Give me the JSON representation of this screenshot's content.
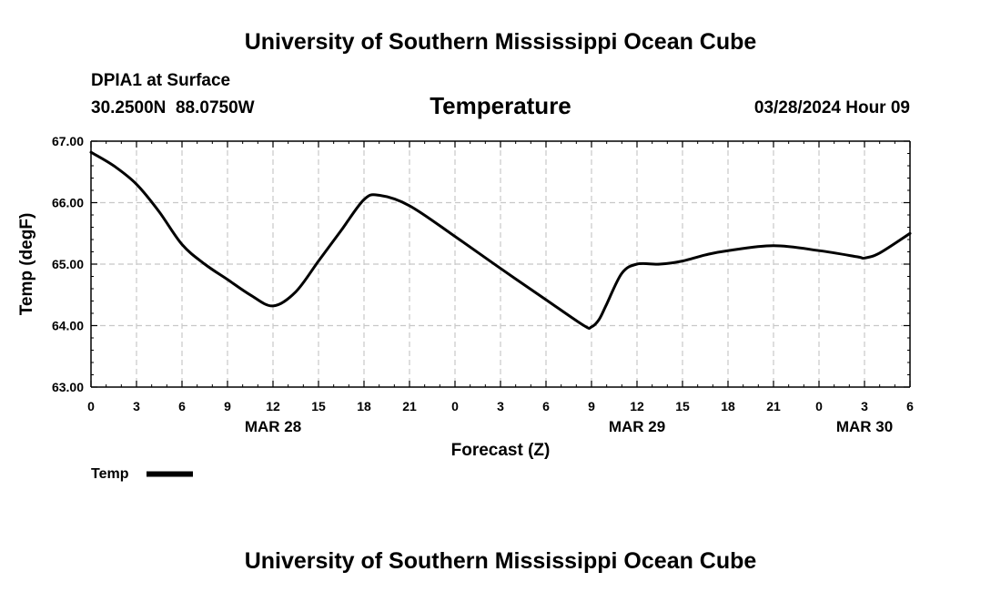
{
  "page": {
    "title_top": "University of Southern Mississippi Ocean Cube",
    "title_bottom": "University of Southern Mississippi Ocean Cube",
    "station": "DPIA1 at Surface",
    "coords": "30.2500N  88.0750W",
    "variable": "Temperature",
    "issued": "03/28/2024 Hour 09"
  },
  "chart_data": {
    "type": "line",
    "xlabel": "Forecast (Z)",
    "ylabel": "Temp (degF)",
    "ylim": [
      63,
      67
    ],
    "xlim": [
      0,
      54
    ],
    "grid": true,
    "y_ticks": [
      63,
      64,
      65,
      66,
      67
    ],
    "y_tick_labels": [
      "63.00",
      "64.00",
      "65.00",
      "66.00",
      "67.00"
    ],
    "x_ticks": [
      0,
      3,
      6,
      9,
      12,
      15,
      18,
      21,
      24,
      27,
      30,
      33,
      36,
      39,
      42,
      45,
      48,
      51,
      54
    ],
    "x_tick_labels": [
      "0",
      "3",
      "6",
      "9",
      "12",
      "15",
      "18",
      "21",
      "0",
      "3",
      "6",
      "9",
      "12",
      "15",
      "18",
      "21",
      "0",
      "3",
      "6"
    ],
    "date_labels": [
      {
        "x": 12,
        "text": "MAR 28"
      },
      {
        "x": 36,
        "text": "MAR 29"
      },
      {
        "x": 51,
        "text": "MAR 30"
      }
    ],
    "legend": {
      "label": "Temp",
      "position": "bottom-left"
    },
    "series": [
      {
        "name": "Temp",
        "color": "#000000",
        "x": [
          0,
          1.5,
          3,
          4.5,
          6,
          7.5,
          9,
          10.5,
          12,
          13.5,
          15,
          16.5,
          18,
          19,
          21,
          24,
          27,
          30,
          32.5,
          33,
          33.5,
          34,
          35,
          36,
          37.5,
          39,
          40.5,
          42,
          45,
          48,
          50.5,
          51,
          52,
          54
        ],
        "y": [
          66.82,
          66.6,
          66.3,
          65.85,
          65.32,
          65.0,
          64.75,
          64.5,
          64.32,
          64.55,
          65.05,
          65.55,
          66.05,
          66.12,
          65.95,
          65.45,
          64.93,
          64.42,
          64.0,
          63.98,
          64.1,
          64.35,
          64.85,
          65.0,
          65.0,
          65.05,
          65.15,
          65.22,
          65.3,
          65.22,
          65.12,
          65.1,
          65.18,
          65.5
        ]
      }
    ]
  }
}
